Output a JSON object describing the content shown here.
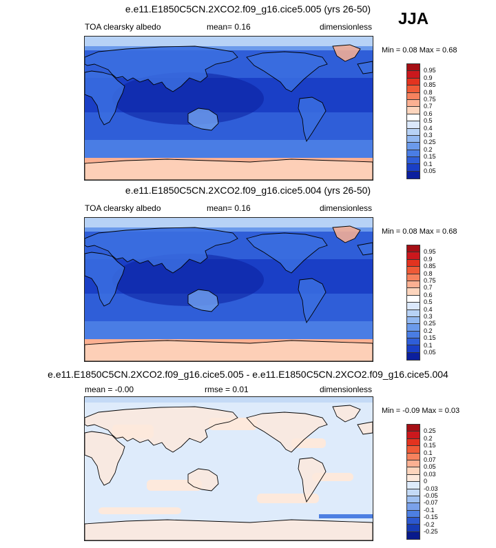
{
  "season": "JJA",
  "panels": [
    {
      "title": "e.e11.E1850C5CN.2XCO2.f09_g16.cice5.005 (yrs 26-50)",
      "left": "TOA clearsky albedo",
      "mid": "mean=   0.16",
      "right": "dimensionless",
      "minmax": "Min =   0.08 Max =    0.68",
      "type": "abs",
      "levels": [
        "0.95",
        "0.9",
        "0.85",
        "0.8",
        "0.75",
        "0.7",
        "0.6",
        "0.5",
        "0.4",
        "0.3",
        "0.25",
        "0.2",
        "0.15",
        "0.1",
        "0.05"
      ],
      "colors": [
        "#a50f15",
        "#cb181d",
        "#e3331f",
        "#ef5a37",
        "#f6825e",
        "#fbb092",
        "#fdd5bd",
        "#ffffff",
        "#dbe8fb",
        "#b7d2f6",
        "#92b8f1",
        "#6b9aeb",
        "#4a7de4",
        "#2f5ed8",
        "#1a3fc6",
        "#0b1f9e"
      ]
    },
    {
      "title": "e.e11.E1850C5CN.2XCO2.f09_g16.cice5.004 (yrs 26-50)",
      "left": "TOA clearsky albedo",
      "mid": "mean=   0.16",
      "right": "dimensionless",
      "minmax": "Min =   0.08 Max =    0.68",
      "type": "abs",
      "levels": [
        "0.95",
        "0.9",
        "0.85",
        "0.8",
        "0.75",
        "0.7",
        "0.6",
        "0.5",
        "0.4",
        "0.3",
        "0.25",
        "0.2",
        "0.15",
        "0.1",
        "0.05"
      ],
      "colors": [
        "#a50f15",
        "#cb181d",
        "#e3331f",
        "#ef5a37",
        "#f6825e",
        "#fbb092",
        "#fdd5bd",
        "#ffffff",
        "#dbe8fb",
        "#b7d2f6",
        "#92b8f1",
        "#6b9aeb",
        "#4a7de4",
        "#2f5ed8",
        "#1a3fc6",
        "#0b1f9e"
      ]
    },
    {
      "title": "e.e11.E1850C5CN.2XCO2.f09_g16.cice5.005 - e.e11.E1850C5CN.2XCO2.f09_g16.cice5.004",
      "left": "mean = -0.00",
      "mid": "rmse =   0.01",
      "right": "dimensionless",
      "minmax": "Min =  -0.09 Max =    0.03",
      "type": "diff",
      "levels": [
        "0.25",
        "0.2",
        "0.15",
        "0.1",
        "0.07",
        "0.05",
        "0.03",
        "0",
        "-0.03",
        "-0.05",
        "-0.07",
        "-0.1",
        "-0.15",
        "-0.2",
        "-0.25"
      ],
      "colors": [
        "#a50f15",
        "#cb181d",
        "#e3331f",
        "#ef5a37",
        "#f6825e",
        "#fbb092",
        "#fdd5bd",
        "#fde9dc",
        "#deebfb",
        "#c4daf6",
        "#9fc0f1",
        "#7aa1eb",
        "#4d7fe2",
        "#2c58cf",
        "#163bb4",
        "#081a8c"
      ]
    }
  ]
}
